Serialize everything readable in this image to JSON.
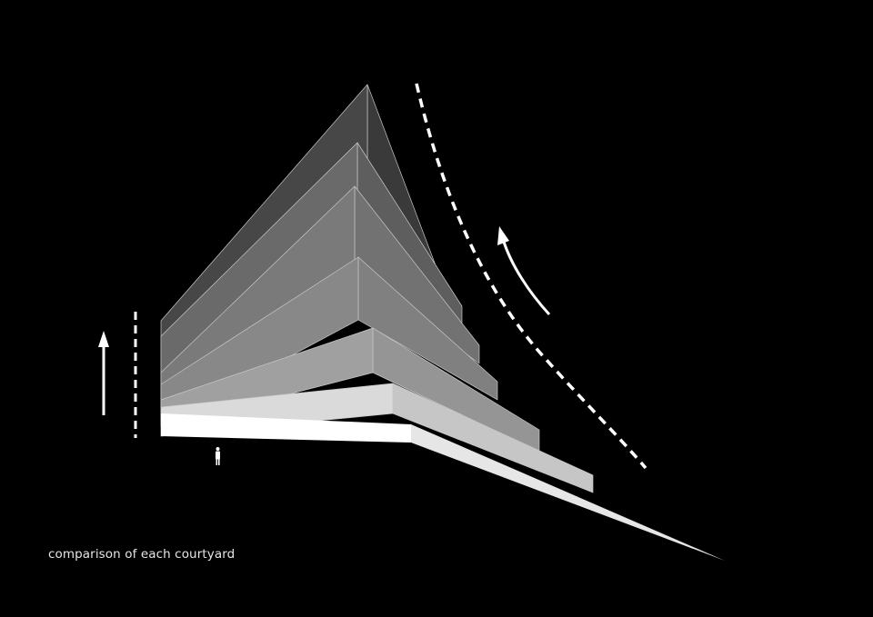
{
  "caption": "comparison of each courtyard",
  "colors": {
    "background": "#000000",
    "layers_left": [
      "#474747",
      "#6a6a6a",
      "#7a7a7a",
      "#888888",
      "#a0a0a0",
      "#dadada",
      "#ffffff"
    ],
    "layers_right": [
      "#3a3a3a",
      "#5e5e5e",
      "#727272",
      "#808080",
      "#959595",
      "#c6c6c6",
      "#e6e6e6"
    ],
    "annotation": "#ffffff"
  },
  "icons": [
    "up-arrow-icon",
    "curved-arrow-icon",
    "person-scale-figure-icon"
  ]
}
